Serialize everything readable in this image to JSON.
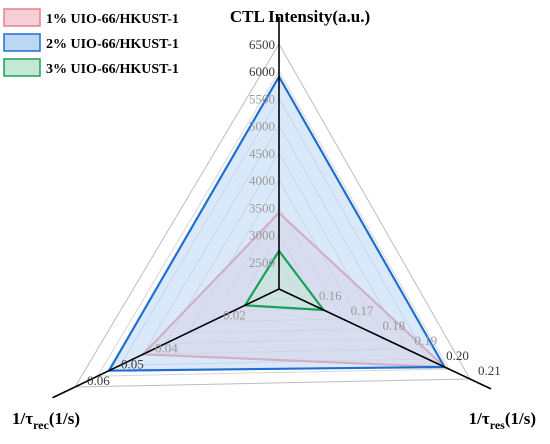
{
  "chart_data": {
    "type": "radar",
    "axes": [
      {
        "key": "ctl",
        "label": "CTL Intensity(a.u.)",
        "min": 2000,
        "max": 6500,
        "ticks": [
          {
            "value": 2500,
            "label": "2500"
          },
          {
            "value": 3000,
            "label": "3000"
          },
          {
            "value": 3500,
            "label": "3500"
          },
          {
            "value": 4000,
            "label": "4000"
          },
          {
            "value": 4500,
            "label": "4500"
          },
          {
            "value": 5000,
            "label": "5000"
          },
          {
            "value": 5500,
            "label": "5500"
          },
          {
            "value": 6000,
            "label": "6000"
          },
          {
            "value": 6500,
            "label": "6500"
          }
        ]
      },
      {
        "key": "res",
        "label_main": "1/τ",
        "label_sub": "res",
        "label_tail": "(1/s)",
        "min": 0.15,
        "max": 0.21,
        "ticks": [
          {
            "value": 0.16,
            "label": "0.16"
          },
          {
            "value": 0.17,
            "label": "0.17"
          },
          {
            "value": 0.18,
            "label": "0.18"
          },
          {
            "value": 0.19,
            "label": "0.19"
          },
          {
            "value": 0.2,
            "label": "0.20"
          },
          {
            "value": 0.21,
            "label": "0.21"
          }
        ]
      },
      {
        "key": "rec",
        "label_main": "1/τ",
        "label_sub": "rec",
        "label_tail": "(1/s)",
        "min": 0.0,
        "max": 0.06,
        "ticks": [
          {
            "value": 0.02,
            "label": "0.02"
          },
          {
            "value": 0.04,
            "label": "0.04"
          },
          {
            "value": 0.05,
            "label": "0.05"
          },
          {
            "value": 0.06,
            "label": "0.06"
          }
        ]
      }
    ],
    "grid_levels": 9,
    "legend_position": "top-left",
    "series": [
      {
        "name": "1% UIO-66/HKUST-1",
        "values": {
          "ctl": 3400,
          "res": 0.202,
          "rec": 0.04
        },
        "stroke": "#e8808e",
        "fill": "#f6cfd6"
      },
      {
        "name": "2% UIO-66/HKUST-1",
        "values": {
          "ctl": 5900,
          "res": 0.202,
          "rec": 0.05
        },
        "stroke": "#1f6fd1",
        "fill": "#bcd7f4"
      },
      {
        "name": "3% UIO-66/HKUST-1",
        "values": {
          "ctl": 2700,
          "res": 0.164,
          "rec": 0.01
        },
        "stroke": "#16a05a",
        "fill": "#c4e8d2"
      }
    ]
  }
}
